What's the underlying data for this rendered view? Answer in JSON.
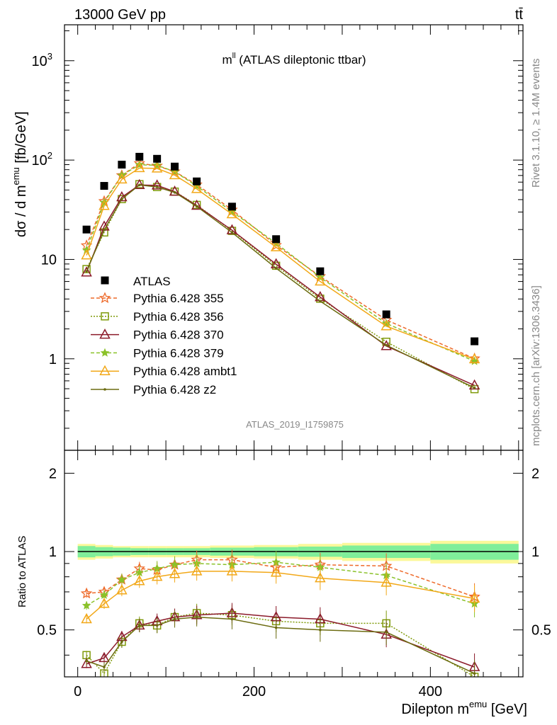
{
  "header": {
    "left": "13000 GeV pp",
    "right": "tt̄"
  },
  "plot_title": {
    "main": "m",
    "sup": "ll",
    "rest": " (ATLAS dileptonic ttbar)"
  },
  "side_text": {
    "top": "Rivet 3.1.10, ≥ 1.4M events",
    "bottom": "mcplots.cern.ch [arXiv:1306.3436]"
  },
  "analysis_label": "ATLAS_2019_I1759875",
  "axis_labels": {
    "main_y": {
      "pre": "dσ / d m",
      "sup": "emu",
      "post": " [fb/GeV]"
    },
    "ratio_y": "Ratio to ATLAS",
    "x": {
      "pre": "Dilepton m",
      "sup": "emu",
      "post": " [GeV]"
    }
  },
  "colors": {
    "data": "#000000",
    "p355": "#ee6a2a",
    "p356": "#7f9a0a",
    "p370": "#8b1a2a",
    "p379": "#8bc22a",
    "ambt1": "#f2a818",
    "z2": "#6b6b10",
    "band_inner": "#80ee9a",
    "band_outer": "#fbf89a"
  },
  "chart_data": {
    "type": "line",
    "x_ticks": [
      "0",
      "200",
      "400"
    ],
    "main_y_ticks": [
      {
        "v": 1,
        "label": "1"
      },
      {
        "v": 10,
        "label": "10"
      },
      {
        "v": 100,
        "label": "10",
        "sup": "2"
      },
      {
        "v": 1000,
        "label": "10",
        "sup": "3"
      }
    ],
    "ratio_y_ticks": [
      "0.5",
      "1",
      "2"
    ],
    "xlim": [
      -15,
      505
    ],
    "main_ylim": [
      0.12,
      2300
    ],
    "ratio_ylim": [
      0.33,
      2.45
    ],
    "x": [
      10,
      30,
      50,
      70,
      90,
      110,
      135,
      175,
      225,
      275,
      350,
      450
    ],
    "data": {
      "name": "ATLAS",
      "values": [
        20,
        55,
        90,
        108,
        103,
        86,
        61,
        34,
        16,
        7.6,
        2.8,
        1.5
      ]
    },
    "band_edges": [
      0,
      20,
      40,
      60,
      80,
      100,
      120,
      150,
      200,
      250,
      300,
      400,
      500
    ],
    "band_inner": [
      0.05,
      0.04,
      0.035,
      0.03,
      0.03,
      0.03,
      0.03,
      0.035,
      0.04,
      0.045,
      0.055,
      0.07
    ],
    "band_outer": [
      0.07,
      0.06,
      0.05,
      0.05,
      0.05,
      0.05,
      0.05,
      0.055,
      0.06,
      0.07,
      0.08,
      0.1
    ],
    "series": [
      {
        "name": "Pythia 6.428 355",
        "color": "#ee6a2a",
        "dash": "5,3",
        "marker": "star",
        "ratio": [
          0.69,
          0.7,
          0.78,
          0.86,
          0.85,
          0.89,
          0.93,
          0.93,
          0.87,
          0.89,
          0.88,
          0.67
        ]
      },
      {
        "name": "Pythia 6.428 356",
        "color": "#7f9a0a",
        "dash": "2,2",
        "marker": "square",
        "ratio": [
          0.4,
          0.34,
          0.45,
          0.53,
          0.52,
          0.56,
          0.58,
          0.57,
          0.54,
          0.53,
          0.53,
          0.33
        ]
      },
      {
        "name": "Pythia 6.428 370",
        "color": "#8b1a2a",
        "dash": "",
        "marker": "triangle",
        "ratio": [
          0.37,
          0.39,
          0.47,
          0.52,
          0.54,
          0.56,
          0.57,
          0.58,
          0.56,
          0.55,
          0.48,
          0.36
        ]
      },
      {
        "name": "Pythia 6.428 379",
        "color": "#8bc22a",
        "dash": "5,3",
        "marker": "smallstar",
        "ratio": [
          0.62,
          0.68,
          0.78,
          0.83,
          0.86,
          0.89,
          0.9,
          0.89,
          0.91,
          0.87,
          0.81,
          0.63
        ]
      },
      {
        "name": "Pythia 6.428 ambt1",
        "color": "#f2a818",
        "dash": "",
        "marker": "triangle",
        "ratio": [
          0.55,
          0.63,
          0.71,
          0.77,
          0.8,
          0.82,
          0.84,
          0.84,
          0.83,
          0.79,
          0.76,
          0.66
        ]
      },
      {
        "name": "Pythia 6.428 z2",
        "color": "#6b6b10",
        "dash": "",
        "marker": "dot",
        "ratio": [
          0.38,
          0.36,
          0.45,
          0.52,
          0.52,
          0.55,
          0.56,
          0.55,
          0.51,
          0.5,
          0.49,
          0.34
        ]
      }
    ]
  }
}
